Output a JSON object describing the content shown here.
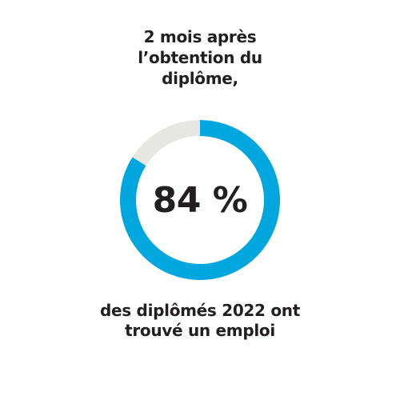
{
  "header": {
    "lines": [
      "2 mois après",
      "l’obtention du",
      "diplôme,"
    ]
  },
  "footer": {
    "lines": [
      "des diplômés 2022 ont",
      "trouvé un emploi"
    ]
  },
  "colors": {
    "accent": "#00a6de",
    "track": "#e6e6e3",
    "text": "#231f20"
  },
  "chart_data": {
    "type": "pie",
    "center_label": "84 %",
    "slices": [
      {
        "value": 84
      },
      {
        "value": 16
      }
    ],
    "total": 100
  }
}
